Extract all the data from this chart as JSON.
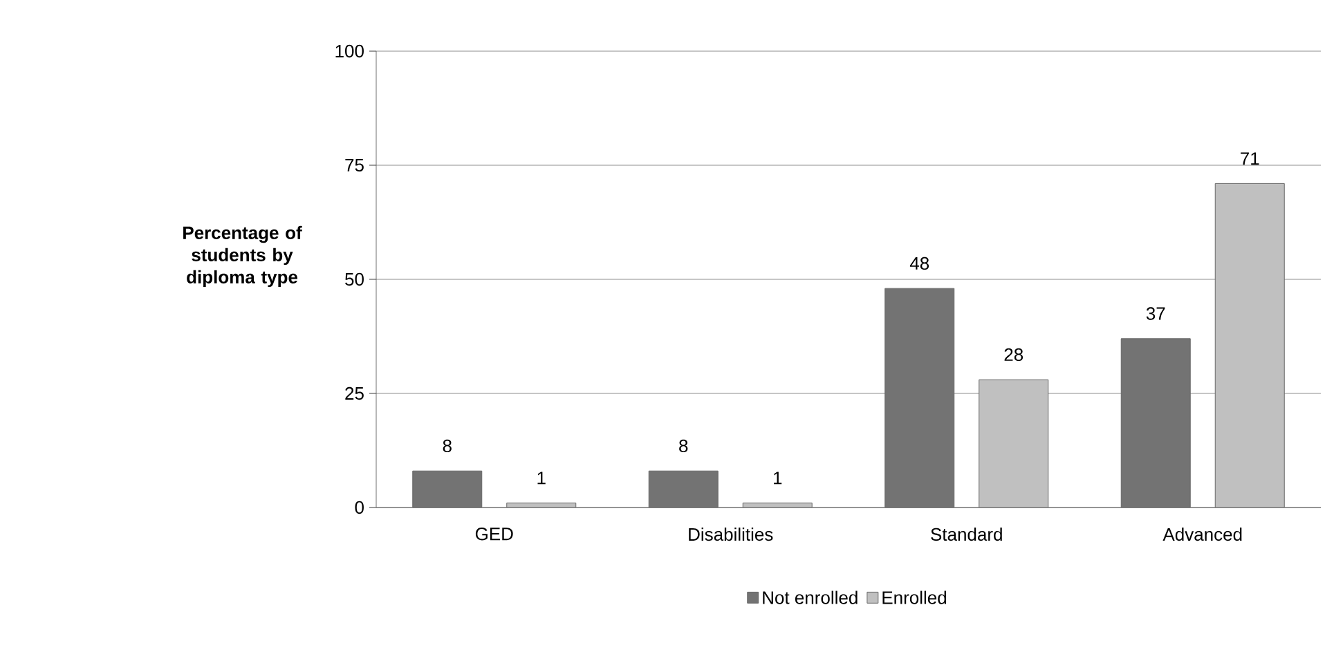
{
  "chart_data": {
    "type": "bar",
    "ylabel": "Percentage of students by diploma type",
    "categories": [
      "GED",
      "Disabilities",
      "Standard",
      "Advanced"
    ],
    "series": [
      {
        "name": "Not enrolled",
        "color": "#737373",
        "values": [
          8,
          8,
          48,
          37
        ]
      },
      {
        "name": "Enrolled",
        "color": "#c0c0c0",
        "values": [
          1,
          1,
          28,
          71
        ]
      }
    ],
    "ylim": [
      0,
      100
    ],
    "yticks": [
      0,
      25,
      50,
      75,
      100
    ],
    "grid": "y",
    "legend": "bottom",
    "data_labels": true
  }
}
